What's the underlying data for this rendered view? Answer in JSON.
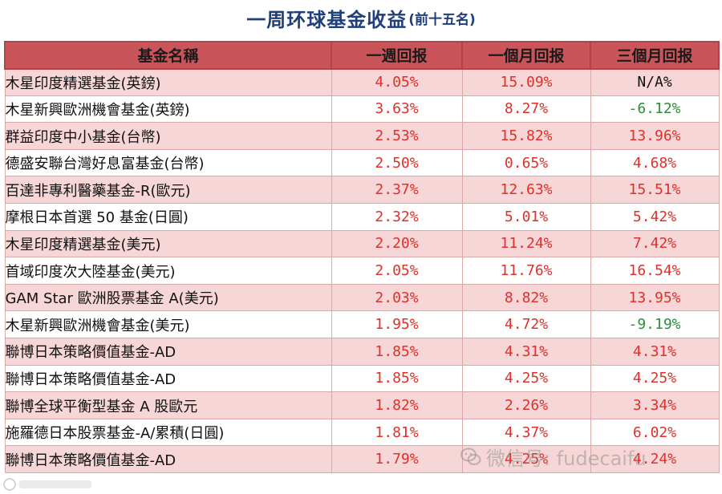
{
  "header": {
    "title": "一周环球基金收益",
    "subtitle": "(前十五名)"
  },
  "table": {
    "columns": [
      "基金名稱",
      "一週回报",
      "一個月回报",
      "三個月回报"
    ],
    "rows": [
      {
        "name": "木星印度精選基金(英鎊)",
        "week": "4.05%",
        "month": "15.09%",
        "quarter": "N/A%",
        "quarter_tone": "na"
      },
      {
        "name": "木星新興歐洲機會基金(英鎊)",
        "week": "3.63%",
        "month": "8.27%",
        "quarter": "-6.12%",
        "quarter_tone": "neg"
      },
      {
        "name": "群益印度中小基金(台幣)",
        "week": "2.53%",
        "month": "15.82%",
        "quarter": "13.96%",
        "quarter_tone": "pos"
      },
      {
        "name": "德盛安聯台灣好息富基金(台幣)",
        "week": "2.50%",
        "month": "0.65%",
        "quarter": "4.68%",
        "quarter_tone": "pos"
      },
      {
        "name": "百達非專利醫藥基金-R(歐元)",
        "week": "2.37%",
        "month": "12.63%",
        "quarter": "15.51%",
        "quarter_tone": "pos"
      },
      {
        "name": "摩根日本首選 50 基金(日圓)",
        "week": "2.32%",
        "month": "5.01%",
        "quarter": "5.42%",
        "quarter_tone": "pos"
      },
      {
        "name": "木星印度精選基金(美元)",
        "week": "2.20%",
        "month": "11.24%",
        "quarter": "7.42%",
        "quarter_tone": "pos"
      },
      {
        "name": "首域印度次大陸基金(美元)",
        "week": "2.05%",
        "month": "11.76%",
        "quarter": "16.54%",
        "quarter_tone": "pos"
      },
      {
        "name": "GAM Star 歐洲股票基金 A(美元)",
        "week": "2.03%",
        "month": "8.82%",
        "quarter": "13.95%",
        "quarter_tone": "pos"
      },
      {
        "name": "木星新興歐洲機會基金(美元)",
        "week": "1.95%",
        "month": "4.72%",
        "quarter": "-9.19%",
        "quarter_tone": "neg"
      },
      {
        "name": "聯博日本策略價值基金-AD",
        "week": "1.85%",
        "month": "4.31%",
        "quarter": "4.31%",
        "quarter_tone": "pos"
      },
      {
        "name": "聯博日本策略價值基金-AD",
        "week": "1.85%",
        "month": "4.25%",
        "quarter": "4.25%",
        "quarter_tone": "pos"
      },
      {
        "name": "聯博全球平衡型基金 A 股歐元",
        "week": "1.82%",
        "month": "2.26%",
        "quarter": "3.34%",
        "quarter_tone": "pos"
      },
      {
        "name": "施羅德日本股票基金-A/累積(日圓)",
        "week": "1.81%",
        "month": "4.37%",
        "quarter": "6.02%",
        "quarter_tone": "pos"
      },
      {
        "name": "聯博日本策略價值基金-AD",
        "week": "1.79%",
        "month": "4.25%",
        "quarter": "4.24%",
        "quarter_tone": "pos"
      }
    ]
  },
  "watermark": {
    "text": "微信号: fudecaifu",
    "icon": "wechat-icon"
  },
  "colors": {
    "header_bg": "#c9545a",
    "row_alt_bg": "#f6d6d6",
    "positive": "#e0302a",
    "negative": "#2b8f3a",
    "title": "#1f3f7a"
  }
}
